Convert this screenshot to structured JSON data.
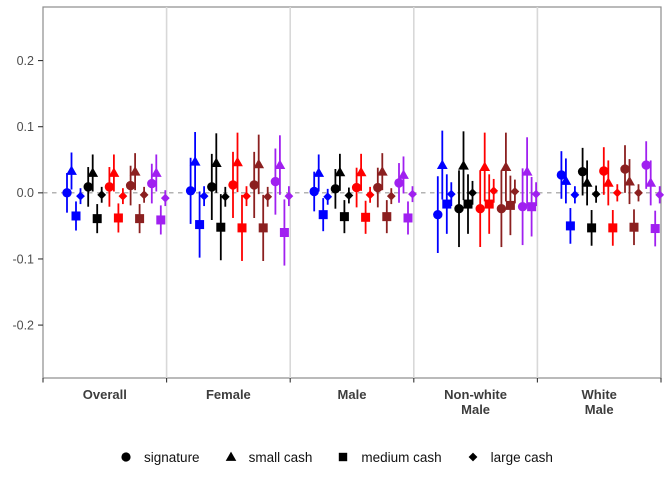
{
  "figure": {
    "kind": "faceted point-range coefficient plot",
    "background": "#ffffff"
  },
  "chart_data": {
    "type": "scatter",
    "subtype": "pointrange",
    "title": "",
    "xlabel": "",
    "ylabel": "",
    "facets": [
      "Overall",
      "Female",
      "Male",
      "Non-white Male",
      "White Male"
    ],
    "facet_label_lines": [
      [
        "Overall"
      ],
      [
        "Female"
      ],
      [
        "Male"
      ],
      [
        "Non-white",
        "Male"
      ],
      [
        "White",
        "Male"
      ]
    ],
    "yticks": [
      0.2,
      0.1,
      0.0,
      -0.1,
      -0.2
    ],
    "ytick_labels": [
      "0.2",
      "0.1",
      "0.0",
      "-0.1",
      "-0.2"
    ],
    "ylim": [
      -0.28,
      0.281
    ],
    "zero_reference_line": 0.0,
    "grid": "off",
    "legend_position": "bottom",
    "legend": [
      {
        "shape": "circle",
        "label": "signature"
      },
      {
        "shape": "triangle",
        "label": "small cash"
      },
      {
        "shape": "square",
        "label": "medium cash"
      },
      {
        "shape": "diamond",
        "label": "large cash"
      }
    ],
    "color_series": [
      "blue",
      "black",
      "red",
      "dark-red",
      "purple"
    ],
    "colors_hex": {
      "blue": "#0000FF",
      "black": "#000000",
      "red": "#FF0000",
      "dark-red": "#8B2020",
      "purple": "#A020F0",
      "axis_text": "#4D4D4D",
      "facet_label": "#3d3d3d",
      "panel_frame": "#8c8c8c",
      "facet_separator": "#d8d8d8",
      "zero_line": "#9a9a9a",
      "tick_mark": "#333333"
    },
    "point_fields": [
      "facet_index",
      "color_index",
      "shape_index",
      "estimate",
      "ci_low",
      "ci_high"
    ],
    "points": [
      [
        0,
        0,
        0,
        0.0,
        -0.03,
        0.03
      ],
      [
        0,
        0,
        1,
        0.033,
        0.005,
        0.061
      ],
      [
        0,
        0,
        2,
        -0.035,
        -0.057,
        -0.013
      ],
      [
        0,
        0,
        3,
        -0.005,
        -0.017,
        0.007
      ],
      [
        0,
        1,
        0,
        0.009,
        -0.021,
        0.039
      ],
      [
        0,
        1,
        1,
        0.03,
        0.002,
        0.058
      ],
      [
        0,
        1,
        2,
        -0.039,
        -0.061,
        -0.017
      ],
      [
        0,
        1,
        3,
        -0.003,
        -0.015,
        0.009
      ],
      [
        0,
        2,
        0,
        0.009,
        -0.021,
        0.039
      ],
      [
        0,
        2,
        1,
        0.03,
        0.002,
        0.058
      ],
      [
        0,
        2,
        2,
        -0.038,
        -0.06,
        -0.016
      ],
      [
        0,
        2,
        3,
        -0.005,
        -0.017,
        0.007
      ],
      [
        0,
        3,
        0,
        0.011,
        -0.019,
        0.041
      ],
      [
        0,
        3,
        1,
        0.032,
        0.004,
        0.06
      ],
      [
        0,
        3,
        2,
        -0.039,
        -0.061,
        -0.017
      ],
      [
        0,
        3,
        3,
        -0.003,
        -0.015,
        0.009
      ],
      [
        0,
        4,
        0,
        0.014,
        -0.016,
        0.044
      ],
      [
        0,
        4,
        1,
        0.03,
        0.002,
        0.058
      ],
      [
        0,
        4,
        2,
        -0.041,
        -0.063,
        -0.019
      ],
      [
        0,
        4,
        3,
        -0.008,
        -0.02,
        0.004
      ],
      [
        1,
        0,
        0,
        0.003,
        -0.047,
        0.053
      ],
      [
        1,
        0,
        1,
        0.047,
        0.002,
        0.092
      ],
      [
        1,
        0,
        2,
        -0.048,
        -0.098,
        0.002
      ],
      [
        1,
        0,
        3,
        -0.005,
        -0.02,
        0.01
      ],
      [
        1,
        1,
        0,
        0.009,
        -0.041,
        0.059
      ],
      [
        1,
        1,
        1,
        0.045,
        0.0,
        0.09
      ],
      [
        1,
        1,
        2,
        -0.052,
        -0.102,
        -0.002
      ],
      [
        1,
        1,
        3,
        -0.006,
        -0.021,
        0.009
      ],
      [
        1,
        2,
        0,
        0.012,
        -0.038,
        0.062
      ],
      [
        1,
        2,
        1,
        0.046,
        0.001,
        0.091
      ],
      [
        1,
        2,
        2,
        -0.053,
        -0.103,
        -0.003
      ],
      [
        1,
        2,
        3,
        -0.005,
        -0.02,
        0.01
      ],
      [
        1,
        3,
        0,
        0.012,
        -0.038,
        0.062
      ],
      [
        1,
        3,
        1,
        0.043,
        -0.002,
        0.088
      ],
      [
        1,
        3,
        2,
        -0.053,
        -0.103,
        -0.003
      ],
      [
        1,
        3,
        3,
        -0.006,
        -0.021,
        0.009
      ],
      [
        1,
        4,
        0,
        0.017,
        -0.033,
        0.067
      ],
      [
        1,
        4,
        1,
        0.042,
        -0.003,
        0.087
      ],
      [
        1,
        4,
        2,
        -0.06,
        -0.11,
        -0.01
      ],
      [
        1,
        4,
        3,
        -0.005,
        -0.02,
        0.01
      ],
      [
        2,
        0,
        0,
        0.002,
        -0.028,
        0.032
      ],
      [
        2,
        0,
        1,
        0.03,
        0.002,
        0.058
      ],
      [
        2,
        0,
        2,
        -0.033,
        -0.058,
        -0.008
      ],
      [
        2,
        0,
        3,
        -0.006,
        -0.018,
        0.006
      ],
      [
        2,
        1,
        0,
        0.006,
        -0.024,
        0.036
      ],
      [
        2,
        1,
        1,
        0.031,
        0.003,
        0.059
      ],
      [
        2,
        1,
        2,
        -0.036,
        -0.061,
        -0.011
      ],
      [
        2,
        1,
        3,
        -0.004,
        -0.016,
        0.008
      ],
      [
        2,
        2,
        0,
        0.008,
        -0.022,
        0.038
      ],
      [
        2,
        2,
        1,
        0.031,
        0.003,
        0.059
      ],
      [
        2,
        2,
        2,
        -0.037,
        -0.062,
        -0.012
      ],
      [
        2,
        2,
        3,
        -0.003,
        -0.015,
        0.009
      ],
      [
        2,
        3,
        0,
        0.008,
        -0.022,
        0.038
      ],
      [
        2,
        3,
        1,
        0.032,
        0.004,
        0.06
      ],
      [
        2,
        3,
        2,
        -0.036,
        -0.061,
        -0.011
      ],
      [
        2,
        3,
        3,
        -0.005,
        -0.017,
        0.007
      ],
      [
        2,
        4,
        0,
        0.015,
        -0.015,
        0.045
      ],
      [
        2,
        4,
        1,
        0.027,
        -0.001,
        0.055
      ],
      [
        2,
        4,
        2,
        -0.038,
        -0.063,
        -0.013
      ],
      [
        2,
        4,
        3,
        -0.002,
        -0.014,
        0.01
      ],
      [
        3,
        0,
        0,
        -0.033,
        -0.091,
        0.025
      ],
      [
        3,
        0,
        1,
        0.042,
        -0.01,
        0.094
      ],
      [
        3,
        0,
        2,
        -0.017,
        -0.062,
        0.028
      ],
      [
        3,
        0,
        3,
        -0.002,
        -0.02,
        0.016
      ],
      [
        3,
        1,
        0,
        -0.024,
        -0.082,
        0.034
      ],
      [
        3,
        1,
        1,
        0.041,
        -0.011,
        0.093
      ],
      [
        3,
        1,
        2,
        -0.017,
        -0.062,
        0.028
      ],
      [
        3,
        1,
        3,
        0.0,
        -0.018,
        0.018
      ],
      [
        3,
        2,
        0,
        -0.024,
        -0.082,
        0.034
      ],
      [
        3,
        2,
        1,
        0.039,
        -0.013,
        0.091
      ],
      [
        3,
        2,
        2,
        -0.017,
        -0.062,
        0.028
      ],
      [
        3,
        2,
        3,
        0.003,
        -0.015,
        0.021
      ],
      [
        3,
        3,
        0,
        -0.024,
        -0.082,
        0.034
      ],
      [
        3,
        3,
        1,
        0.039,
        -0.013,
        0.091
      ],
      [
        3,
        3,
        2,
        -0.019,
        -0.064,
        0.026
      ],
      [
        3,
        3,
        3,
        0.002,
        -0.016,
        0.02
      ],
      [
        3,
        4,
        0,
        -0.021,
        -0.079,
        0.037
      ],
      [
        3,
        4,
        1,
        0.032,
        -0.02,
        0.084
      ],
      [
        3,
        4,
        2,
        -0.021,
        -0.066,
        0.024
      ],
      [
        3,
        4,
        3,
        -0.002,
        -0.02,
        0.016
      ],
      [
        4,
        0,
        0,
        0.027,
        -0.009,
        0.063
      ],
      [
        4,
        0,
        1,
        0.018,
        -0.016,
        0.052
      ],
      [
        4,
        0,
        2,
        -0.05,
        -0.077,
        -0.023
      ],
      [
        4,
        0,
        3,
        -0.003,
        -0.016,
        0.01
      ],
      [
        4,
        1,
        0,
        0.032,
        -0.004,
        0.068
      ],
      [
        4,
        1,
        1,
        0.015,
        -0.019,
        0.049
      ],
      [
        4,
        1,
        2,
        -0.053,
        -0.08,
        -0.026
      ],
      [
        4,
        1,
        3,
        -0.002,
        -0.015,
        0.011
      ],
      [
        4,
        2,
        0,
        0.033,
        -0.003,
        0.069
      ],
      [
        4,
        2,
        1,
        0.015,
        -0.019,
        0.049
      ],
      [
        4,
        2,
        2,
        -0.053,
        -0.08,
        -0.026
      ],
      [
        4,
        2,
        3,
        0.0,
        -0.013,
        0.013
      ],
      [
        4,
        3,
        0,
        0.036,
        0.0,
        0.072
      ],
      [
        4,
        3,
        1,
        0.017,
        -0.017,
        0.051
      ],
      [
        4,
        3,
        2,
        -0.052,
        -0.079,
        -0.025
      ],
      [
        4,
        3,
        3,
        0.0,
        -0.013,
        0.013
      ],
      [
        4,
        4,
        0,
        0.042,
        0.006,
        0.078
      ],
      [
        4,
        4,
        1,
        0.015,
        -0.019,
        0.049
      ],
      [
        4,
        4,
        2,
        -0.054,
        -0.081,
        -0.027
      ],
      [
        4,
        4,
        3,
        -0.003,
        -0.016,
        0.01
      ]
    ]
  }
}
